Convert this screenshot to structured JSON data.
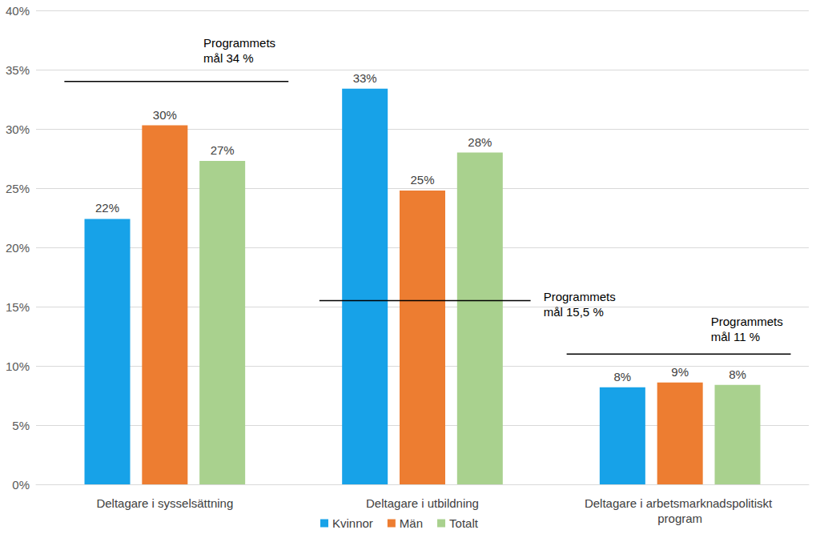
{
  "chart_data": {
    "type": "bar",
    "categories": [
      "Deltagare i sysselsättning",
      "Deltagare i utbildning",
      "Deltagare i arbetsmarknadspolitiskt program"
    ],
    "series": [
      {
        "name": "Kvinnor",
        "color": "#17a2e8",
        "values": [
          22.4,
          33.4,
          8.2
        ],
        "value_labels": [
          "22%",
          "33%",
          "8%"
        ]
      },
      {
        "name": "Män",
        "color": "#ed7d31",
        "values": [
          30.3,
          24.8,
          8.6
        ],
        "value_labels": [
          "30%",
          "25%",
          "9%"
        ]
      },
      {
        "name": "Totalt",
        "color": "#a9d18e",
        "values": [
          27.3,
          28.0,
          8.4
        ],
        "value_labels": [
          "27%",
          "28%",
          "8%"
        ]
      }
    ],
    "annotations": [
      {
        "category": "Deltagare i sysselsättning",
        "value": 34,
        "text": "Programmets\nmål 34 %"
      },
      {
        "category": "Deltagare i utbildning",
        "value": 15.5,
        "text": "Programmets\nmål 15,5 %"
      },
      {
        "category": "Deltagare i arbetsmarknadspolitiskt program",
        "value": 11,
        "text": "Programmets\nmål 11 %"
      }
    ],
    "ylim": [
      0,
      40
    ],
    "yticks": [
      {
        "value": 0,
        "label": "0%"
      },
      {
        "value": 5,
        "label": "5%"
      },
      {
        "value": 10,
        "label": "10%"
      },
      {
        "value": 15,
        "label": "15%"
      },
      {
        "value": 20,
        "label": "20%"
      },
      {
        "value": 25,
        "label": "25%"
      },
      {
        "value": 30,
        "label": "30%"
      },
      {
        "value": 35,
        "label": "35%"
      },
      {
        "value": 40,
        "label": "40%"
      }
    ],
    "grid": true,
    "legend": "bottom",
    "data_labels": true
  }
}
